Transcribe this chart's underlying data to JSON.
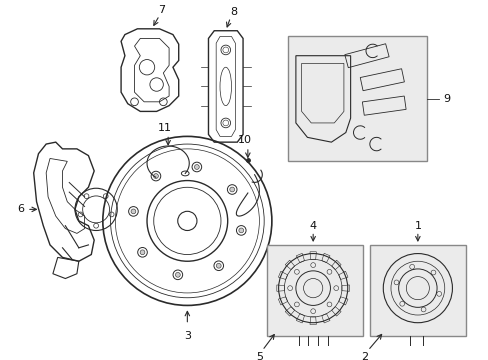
{
  "background_color": "#ffffff",
  "line_color": "#2a2a2a",
  "box_fill": "#ebebeb",
  "box_edge": "#888888",
  "label_color": "#111111",
  "figsize": [
    4.89,
    3.6
  ],
  "dpi": 100
}
